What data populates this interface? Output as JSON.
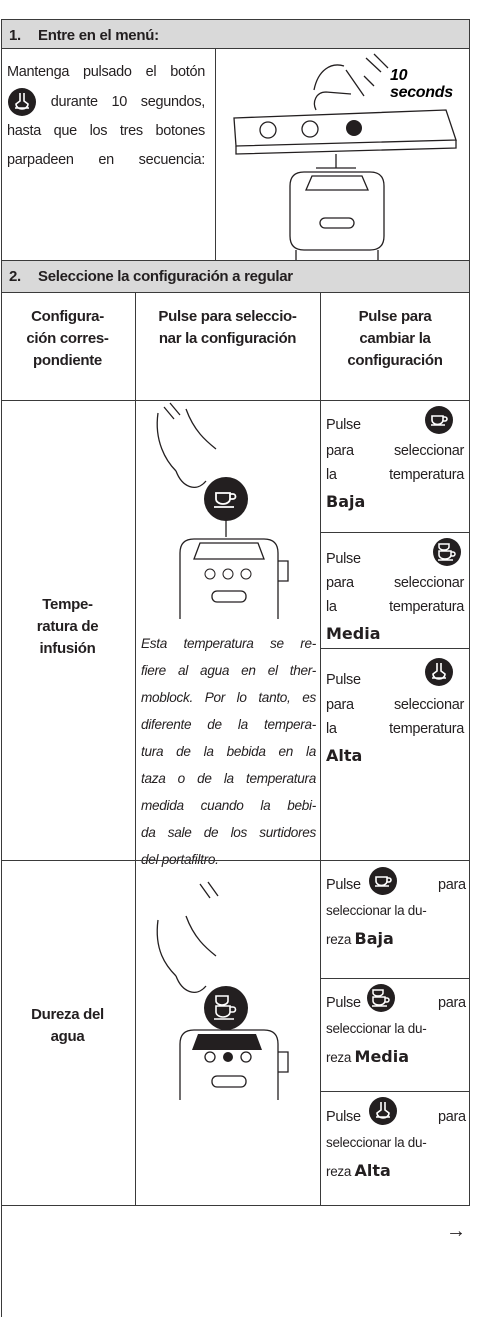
{
  "section1": {
    "number": "1.",
    "title": "Entre en el menú:",
    "text_before": "Mantenga pulsado el botón",
    "text_after": "durante 10 segundos, hasta que los tres botones parpadeen en secuencia:",
    "image_label_1": "10",
    "image_label_2": "seconds"
  },
  "section2": {
    "number": "2.",
    "title": "Seleccione la configuración a regular",
    "columns": [
      [
        "Configura-",
        "ción corres-",
        "pondiente"
      ],
      [
        "Pulse para seleccio-",
        "nar la configuración"
      ],
      [
        "Pulse para",
        "cambiar la",
        "configuración"
      ]
    ],
    "rows": [
      {
        "name": [
          "Tempe-",
          "ratura de",
          "infusión"
        ],
        "note": [
          "Esta temperatura se re-",
          "fiere al agua en el ther-",
          "moblock. Por lo tanto, es",
          "diferente de la tempera-",
          "tura de la bebida en la",
          "taza o de la temperatura",
          "medida cuando la bebi-",
          "da sale de los surtidores",
          "del portafiltro."
        ],
        "options": [
          {
            "pulse": "Pulse",
            "lines": [
              "para seleccionar",
              "la temperatura"
            ],
            "level": "Baja"
          },
          {
            "pulse": "Pulse",
            "lines": [
              "para seleccionar",
              "la temperatura"
            ],
            "level": "Media"
          },
          {
            "pulse": "Pulse",
            "lines": [
              "para seleccionar",
              "la temperatura"
            ],
            "level": "Alta"
          }
        ]
      },
      {
        "name": [
          "Dureza del",
          "agua"
        ],
        "options": [
          {
            "pulse": "Pulse",
            "after": "para",
            "lines": [
              "seleccionar la du-",
              "reza"
            ],
            "level": "Baja"
          },
          {
            "pulse": "Pulse",
            "after": "para",
            "lines": [
              "seleccionar la du-",
              "reza"
            ],
            "level": "Media"
          },
          {
            "pulse": "Pulse",
            "after": "para",
            "lines": [
              "seleccionar la du-",
              "reza"
            ],
            "level": "Alta"
          }
        ]
      }
    ]
  },
  "footer": {
    "arrow": "→"
  }
}
